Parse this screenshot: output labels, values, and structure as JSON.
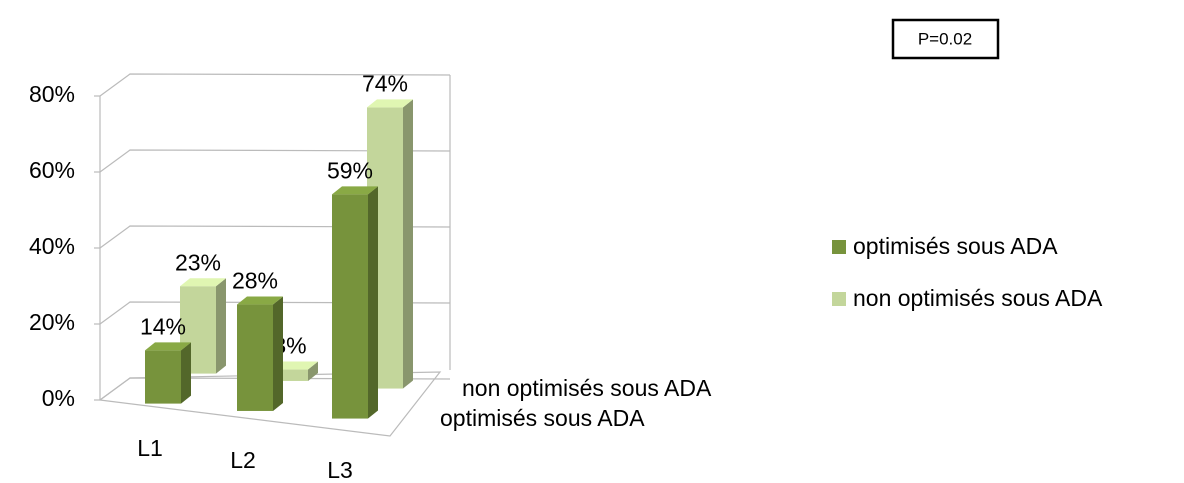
{
  "chart_data": {
    "type": "bar3d",
    "annotation": "P=0.02",
    "categories": [
      "L1",
      "L2",
      "L3"
    ],
    "series": [
      {
        "name": "optimisés sous ADA",
        "color": "#77933c",
        "values": [
          14,
          28,
          59
        ],
        "value_labels": [
          "14%",
          "28%",
          "59%"
        ]
      },
      {
        "name": "non optimisés sous ADA",
        "color": "#c3d69b",
        "values": [
          23,
          3,
          74
        ],
        "value_labels": [
          "23%",
          "3%",
          "74%"
        ]
      }
    ],
    "ylim": [
      0,
      80
    ],
    "yticks": [
      {
        "value": 0,
        "label": "0%"
      },
      {
        "value": 20,
        "label": "20%"
      },
      {
        "value": 40,
        "label": "40%"
      },
      {
        "value": 60,
        "label": "60%"
      },
      {
        "value": 80,
        "label": "80%"
      }
    ],
    "grid": true,
    "legend": "right"
  }
}
